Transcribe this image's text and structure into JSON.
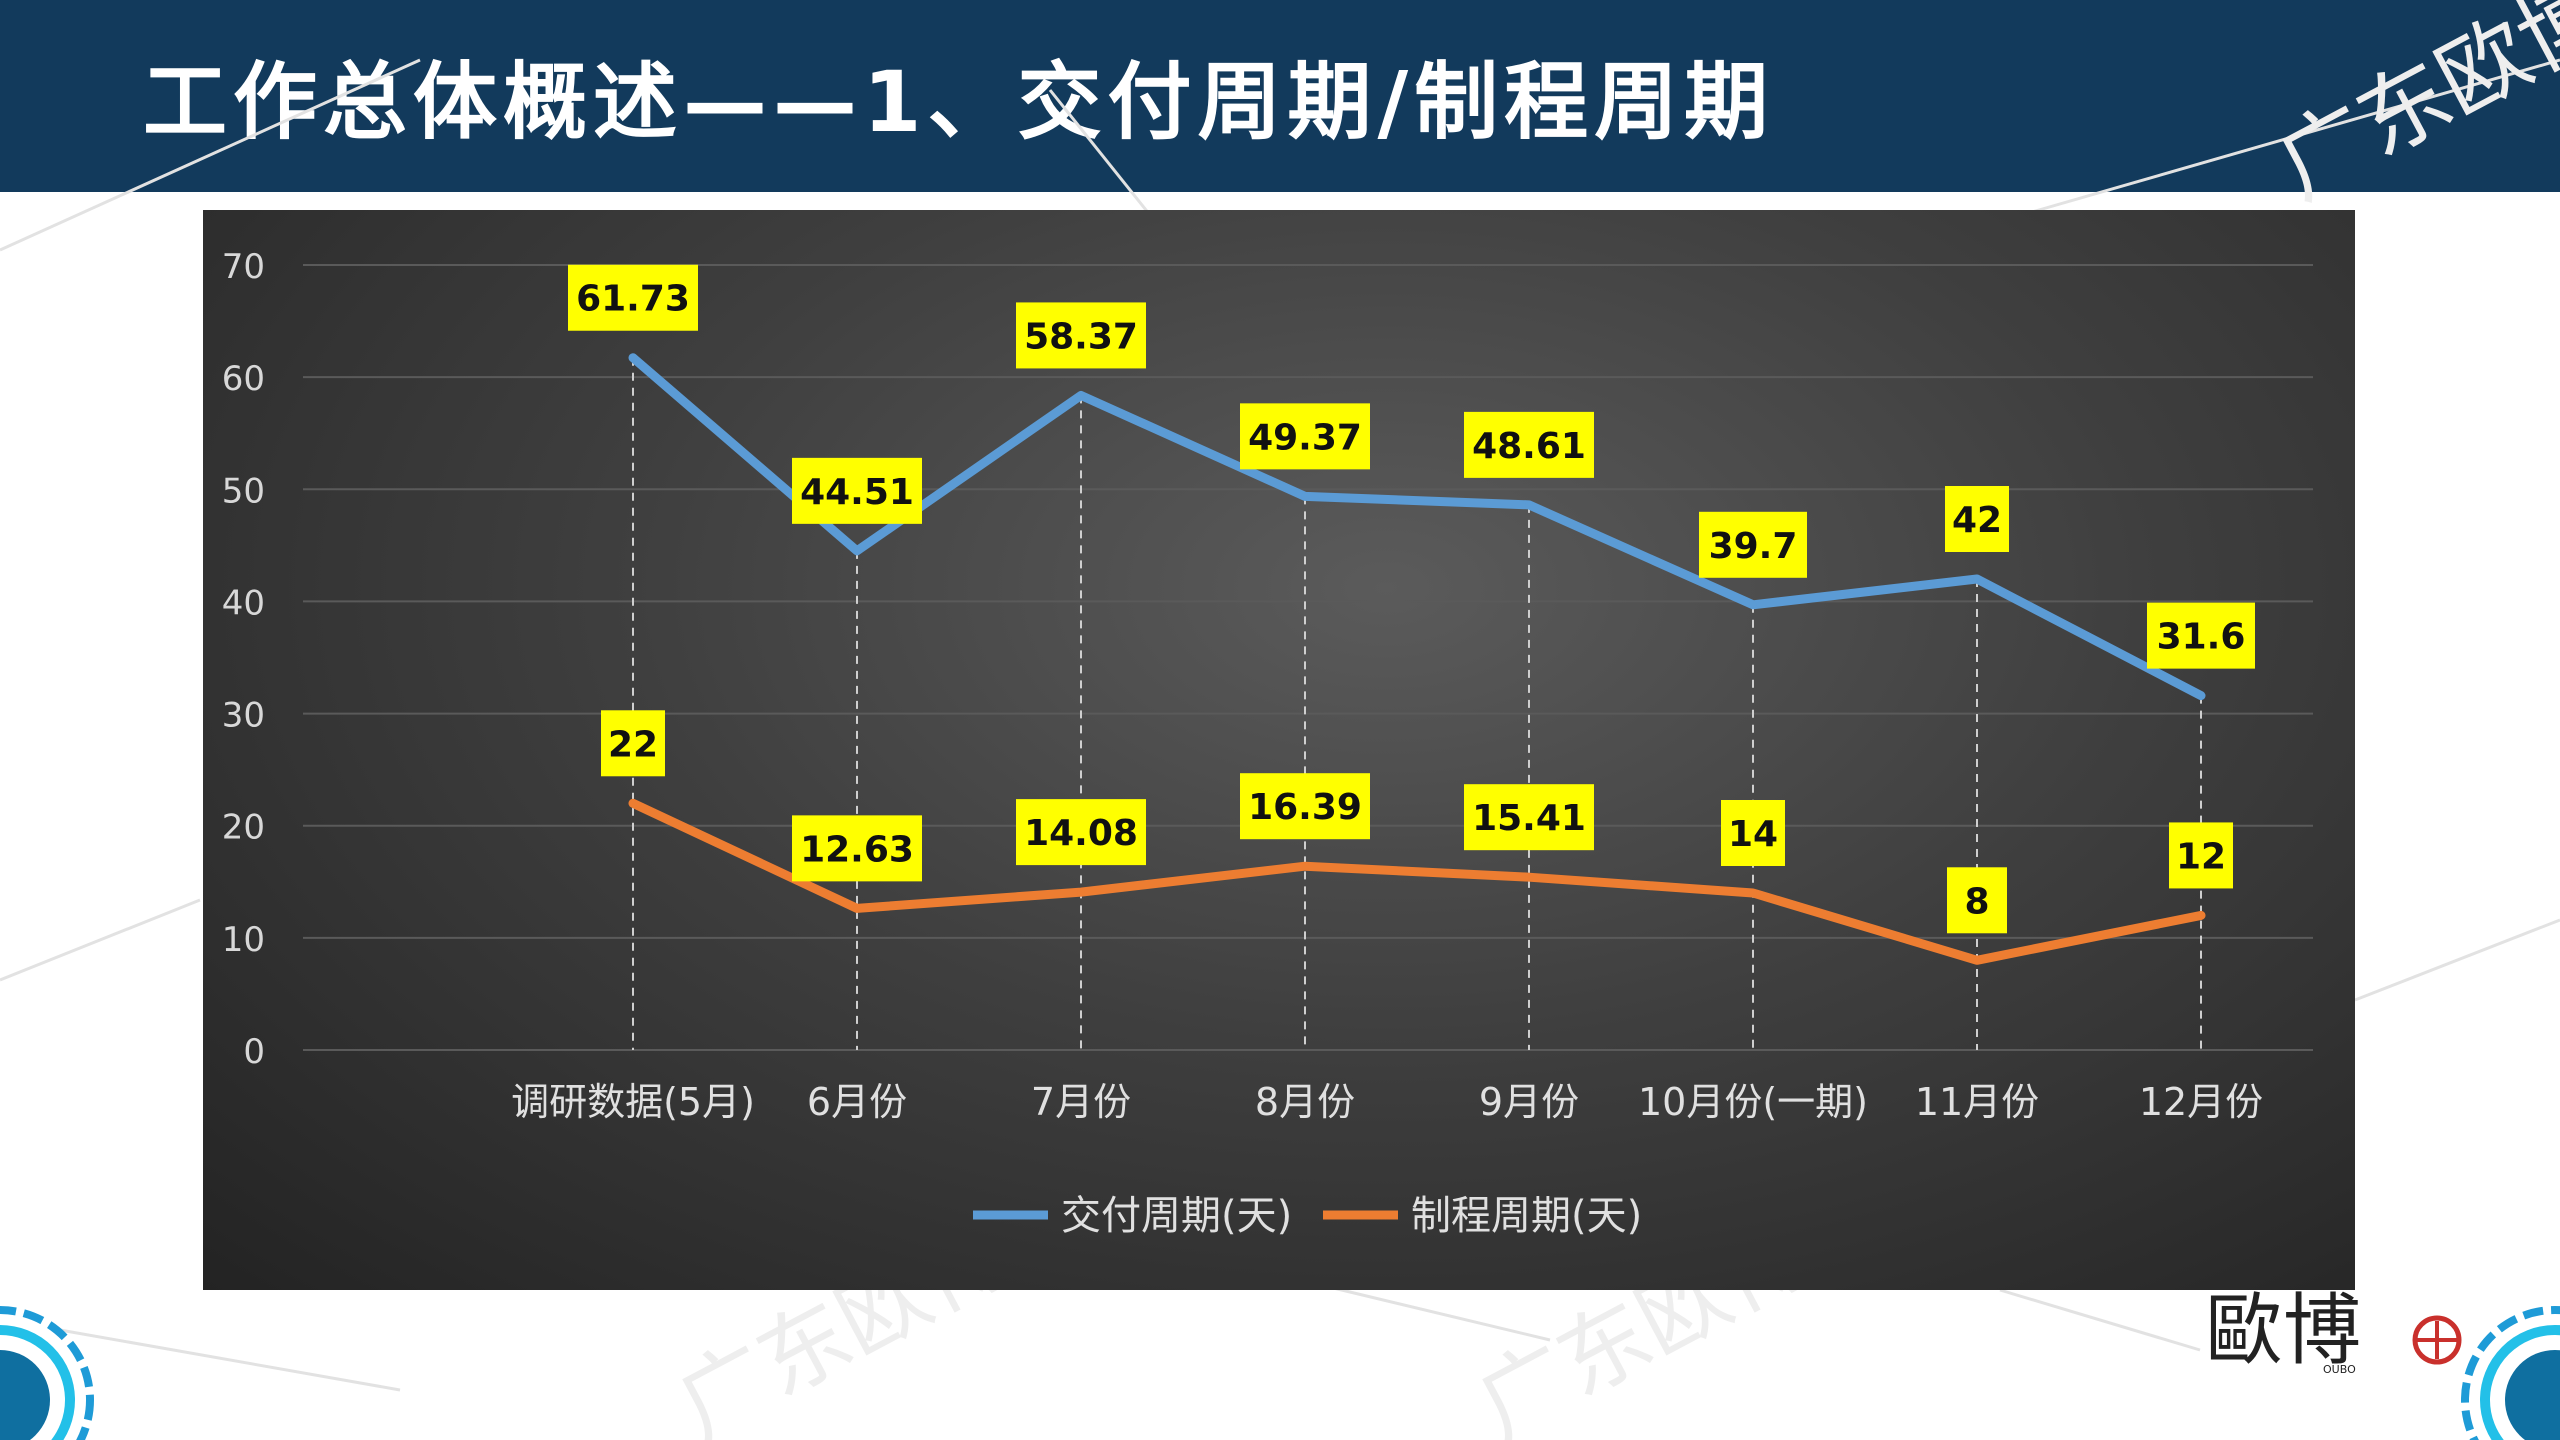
{
  "header": {
    "title": "工作总体概述——1、交付周期/制程周期"
  },
  "colors": {
    "header_bg": "#123a5c",
    "delivery_line": "#5b9bd5",
    "process_line": "#ed7d31",
    "label_bg": "#ffff00",
    "chart_bg": "#3f3f3f"
  },
  "watermark": {
    "text": "广东欧博企管"
  },
  "logo": {
    "glyphs": "歐博",
    "sub": "OUBO"
  },
  "chart_data": {
    "type": "line",
    "categories": [
      "调研数据(5月)",
      "6月份",
      "7月份",
      "8月份",
      "9月份",
      "10月份(一期)",
      "11月份",
      "12月份"
    ],
    "ylim": [
      0,
      70
    ],
    "yticks": [
      0,
      10,
      20,
      30,
      40,
      50,
      60,
      70
    ],
    "grid": true,
    "legend_position": "bottom",
    "series": [
      {
        "name": "交付周期(天)",
        "color": "#5b9bd5",
        "values": [
          61.73,
          44.51,
          58.37,
          49.37,
          48.61,
          39.7,
          42,
          31.6
        ],
        "labels": [
          "61.73",
          "44.51",
          "58.37",
          "49.37",
          "48.61",
          "39.7",
          "42",
          "31.6"
        ]
      },
      {
        "name": "制程周期(天)",
        "color": "#ed7d31",
        "values": [
          22,
          12.63,
          14.08,
          16.39,
          15.41,
          14,
          8,
          12
        ],
        "labels": [
          "22",
          "12.63",
          "14.08",
          "16.39",
          "15.41",
          "14",
          "8",
          "12"
        ]
      }
    ]
  }
}
